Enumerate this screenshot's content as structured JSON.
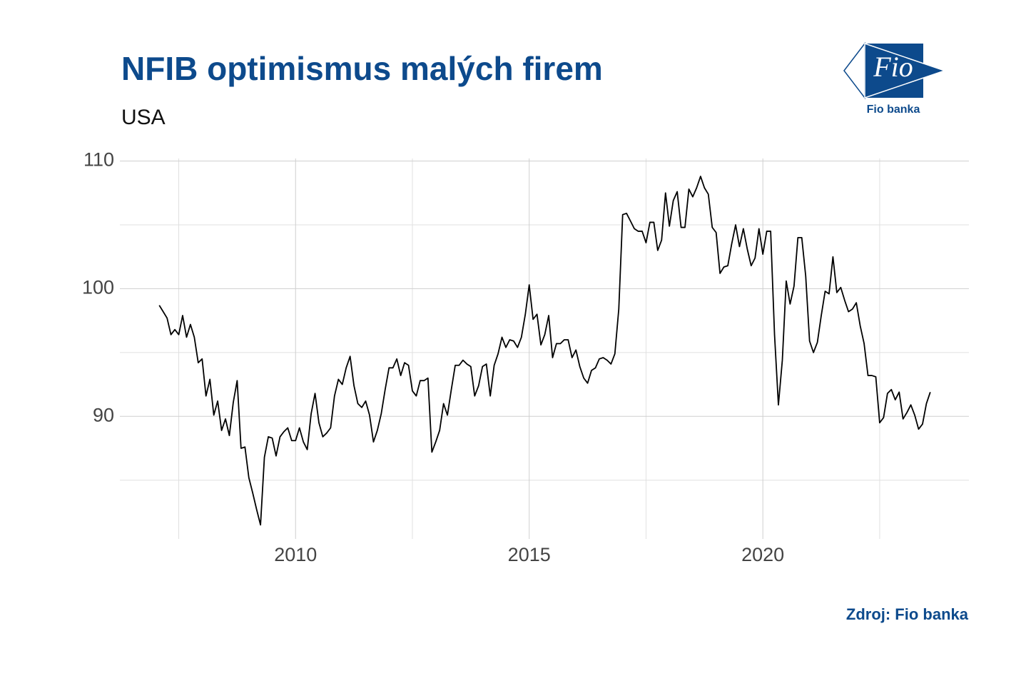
{
  "chart_data": {
    "type": "line",
    "title": "NFIB optimismus malých firem",
    "subtitle": "USA",
    "source": "Zdroj: Fio banka",
    "logo": {
      "text": "Fio",
      "caption": "Fio banka"
    },
    "xlim": [
      2006.24,
      2024.41
    ],
    "xticks": [
      2010,
      2015,
      2020
    ],
    "minor_xticks": [
      2007.5,
      2012.5,
      2017.5,
      2022.5
    ],
    "ylim": [
      80.4,
      110.2
    ],
    "yticks": [
      90,
      100,
      110
    ],
    "minor_yticks": [
      85,
      95,
      105
    ],
    "grid": true,
    "x": [
      2007.083,
      2007.167,
      2007.25,
      2007.333,
      2007.417,
      2007.5,
      2007.583,
      2007.667,
      2007.75,
      2007.833,
      2007.917,
      2008,
      2008.083,
      2008.167,
      2008.25,
      2008.333,
      2008.417,
      2008.5,
      2008.583,
      2008.667,
      2008.75,
      2008.833,
      2008.917,
      2009,
      2009.083,
      2009.167,
      2009.25,
      2009.333,
      2009.417,
      2009.5,
      2009.583,
      2009.667,
      2009.75,
      2009.833,
      2009.917,
      2010,
      2010.083,
      2010.167,
      2010.25,
      2010.333,
      2010.417,
      2010.5,
      2010.583,
      2010.667,
      2010.75,
      2010.833,
      2010.917,
      2011,
      2011.083,
      2011.167,
      2011.25,
      2011.333,
      2011.417,
      2011.5,
      2011.583,
      2011.667,
      2011.75,
      2011.833,
      2011.917,
      2012,
      2012.083,
      2012.167,
      2012.25,
      2012.333,
      2012.417,
      2012.5,
      2012.583,
      2012.667,
      2012.75,
      2012.833,
      2012.917,
      2013,
      2013.083,
      2013.167,
      2013.25,
      2013.333,
      2013.417,
      2013.5,
      2013.583,
      2013.667,
      2013.75,
      2013.833,
      2013.917,
      2014,
      2014.083,
      2014.167,
      2014.25,
      2014.333,
      2014.417,
      2014.5,
      2014.583,
      2014.667,
      2014.75,
      2014.833,
      2014.917,
      2015,
      2015.083,
      2015.167,
      2015.25,
      2015.333,
      2015.417,
      2015.5,
      2015.583,
      2015.667,
      2015.75,
      2015.833,
      2015.917,
      2016,
      2016.083,
      2016.167,
      2016.25,
      2016.333,
      2016.417,
      2016.5,
      2016.583,
      2016.667,
      2016.75,
      2016.833,
      2016.917,
      2017,
      2017.083,
      2017.167,
      2017.25,
      2017.333,
      2017.417,
      2017.5,
      2017.583,
      2017.667,
      2017.75,
      2017.833,
      2017.917,
      2018,
      2018.083,
      2018.167,
      2018.25,
      2018.333,
      2018.417,
      2018.5,
      2018.583,
      2018.667,
      2018.75,
      2018.833,
      2018.917,
      2019,
      2019.083,
      2019.167,
      2019.25,
      2019.333,
      2019.417,
      2019.5,
      2019.583,
      2019.667,
      2019.75,
      2019.833,
      2019.917,
      2020,
      2020.083,
      2020.167,
      2020.25,
      2020.333,
      2020.417,
      2020.5,
      2020.583,
      2020.667,
      2020.75,
      2020.833,
      2020.917,
      2021,
      2021.083,
      2021.167,
      2021.25,
      2021.333,
      2021.417,
      2021.5,
      2021.583,
      2021.667,
      2021.75,
      2021.833,
      2021.917,
      2022,
      2022.083,
      2022.167,
      2022.25,
      2022.333,
      2022.417,
      2022.5,
      2022.583,
      2022.667,
      2022.75,
      2022.833,
      2022.917,
      2023,
      2023.083,
      2023.167,
      2023.25,
      2023.333,
      2023.417,
      2023.5,
      2023.583
    ],
    "series": [
      {
        "name": "NFIB",
        "color": "#000000",
        "values": [
          98.7,
          98.2,
          97.7,
          96.4,
          96.8,
          96.4,
          97.9,
          96.2,
          97.2,
          96.2,
          94.2,
          94.5,
          91.6,
          92.9,
          90.1,
          91.2,
          88.9,
          89.8,
          88.5,
          91.1,
          92.8,
          87.5,
          87.6,
          85.2,
          84.0,
          82.7,
          81.5,
          86.8,
          88.4,
          88.3,
          86.9,
          88.4,
          88.8,
          89.1,
          88.1,
          88.1,
          89.1,
          88.0,
          87.4,
          90.2,
          91.8,
          89.5,
          88.4,
          88.7,
          89.1,
          91.6,
          92.9,
          92.5,
          93.8,
          94.7,
          92.4,
          91.0,
          90.7,
          91.2,
          90.1,
          88.0,
          88.9,
          90.2,
          92.1,
          93.8,
          93.8,
          94.5,
          93.2,
          94.2,
          94.0,
          92.0,
          91.6,
          92.8,
          92.8,
          93.0,
          87.2,
          88.0,
          88.9,
          91.0,
          90.1,
          92.1,
          94.0,
          94.0,
          94.4,
          94.1,
          93.9,
          91.6,
          92.4,
          93.9,
          94.1,
          91.6,
          94.0,
          94.9,
          96.2,
          95.4,
          96.0,
          95.9,
          95.4,
          96.2,
          98.0,
          100.3,
          97.6,
          98.0,
          95.6,
          96.4,
          97.9,
          94.6,
          95.7,
          95.7,
          96.0,
          96.0,
          94.6,
          95.2,
          93.9,
          93.0,
          92.6,
          93.6,
          93.8,
          94.5,
          94.6,
          94.4,
          94.1,
          94.9,
          98.4,
          105.8,
          105.9,
          105.3,
          104.7,
          104.5,
          104.5,
          103.6,
          105.2,
          105.2,
          103.0,
          103.8,
          107.5,
          104.9,
          106.9,
          107.6,
          104.8,
          104.8,
          107.8,
          107.2,
          107.9,
          108.8,
          107.9,
          107.4,
          104.8,
          104.4,
          101.2,
          101.7,
          101.8,
          103.5,
          105.0,
          103.3,
          104.7,
          103.1,
          101.8,
          102.4,
          104.7,
          102.7,
          104.5,
          104.5,
          96.4,
          90.9,
          94.4,
          100.6,
          98.8,
          100.2,
          104.0,
          104.0,
          101.0,
          95.9,
          95.0,
          95.8,
          97.9,
          99.8,
          99.6,
          102.5,
          99.7,
          100.1,
          99.1,
          98.2,
          98.4,
          98.9,
          97.1,
          95.7,
          93.2,
          93.2,
          93.1,
          89.5,
          89.9,
          91.8,
          92.1,
          91.3,
          91.9,
          89.8,
          90.3,
          90.9,
          90.1,
          89.0,
          89.4,
          91.0,
          91.9
        ]
      }
    ]
  }
}
